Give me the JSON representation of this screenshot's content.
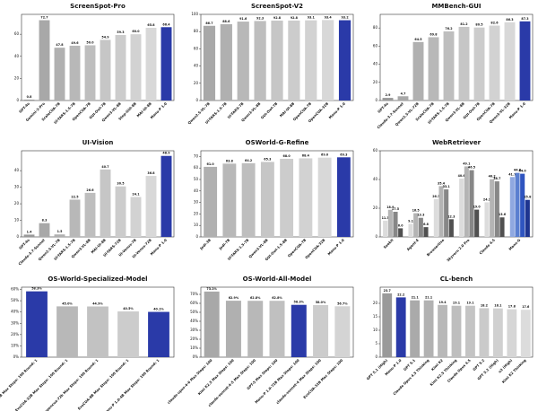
{
  "chart_data": [
    {
      "type": "bar",
      "title": "ScreenSpot-Pro",
      "categories": [
        "GPT-4o",
        "Gemini-3-Pro",
        "ScaleCUA-7B",
        "UI-TARS-1.5-7B",
        "OpenCUA-7B",
        "GUI-Owl-7B",
        "Qwen3-VL-8B",
        "Step-GUI-8B",
        "MAI-UI-8B",
        "Mano-P 1.0"
      ],
      "values": [
        0.8,
        72.7,
        47.8,
        49.6,
        50.0,
        54.9,
        59.3,
        60.0,
        65.8,
        66.4
      ],
      "value_labels": [
        "0.8",
        "72.7",
        "47.8",
        "49.6",
        "50.0",
        "54.9",
        "59.3",
        "60.0",
        "65.8",
        "66.4"
      ],
      "colors": [
        "#9a9a9a",
        "#a8a8a8",
        "#b0b0b0",
        "#b8b8b8",
        "#bebebe",
        "#c6c6c6",
        "#cccccc",
        "#d2d2d2",
        "#d8d8d8",
        "#2a3aa8"
      ],
      "ylim": [
        0,
        78
      ],
      "yticks": [
        0,
        20,
        40,
        60
      ]
    },
    {
      "type": "bar",
      "title": "ScreenSpot-V2",
      "categories": [
        "Qwen2.5-VL-7B",
        "UI-TARS-1.5-7B",
        "UI-TARS-7B",
        "Qwen3-VL-8B",
        "GUI-Owl-7B",
        "MAI-UI-8B",
        "OpenCUA-7B",
        "OpenCUA-32B",
        "Mano-P 1.0"
      ],
      "values": [
        86.7,
        88.6,
        91.6,
        92.3,
        92.8,
        92.8,
        93.1,
        93.4,
        93.2
      ],
      "value_labels": [
        "86.7",
        "88.6",
        "91.6",
        "92.3",
        "92.8",
        "92.8",
        "93.1",
        "93.4",
        "93.2"
      ],
      "colors": [
        "#a8a8a8",
        "#b0b0b0",
        "#b8b8b8",
        "#bebebe",
        "#c6c6c6",
        "#cccccc",
        "#d2d2d2",
        "#d8d8d8",
        "#2a3aa8"
      ],
      "ylim": [
        0,
        100
      ],
      "yticks": [
        0,
        20,
        40,
        60,
        80,
        100
      ]
    },
    {
      "type": "bar",
      "title": "MMBench-GUI",
      "categories": [
        "GPT-4o",
        "Claude-3.7-Sonnet",
        "Qwen2.5-VL-72B",
        "ScaleCUA-7B",
        "UI-TARS-1.5-7B",
        "Qwen3-VL-8B",
        "GUI-Owl-7B",
        "OpenCUA-7B",
        "Qwen3-VL-32B",
        "Mano-P 1.0"
      ],
      "values": [
        2.9,
        4.7,
        64.5,
        69.8,
        76.2,
        81.2,
        80.5,
        82.6,
        86.3,
        87.3
      ],
      "value_labels": [
        "2.9",
        "4.7",
        "64.5",
        "69.8",
        "76.2",
        "81.2",
        "80.5",
        "82.6",
        "86.3",
        "87.3"
      ],
      "colors": [
        "#9a9a9a",
        "#a8a8a8",
        "#b0b0b0",
        "#b8b8b8",
        "#bebebe",
        "#c6c6c6",
        "#cccccc",
        "#d2d2d2",
        "#d8d8d8",
        "#2a3aa8"
      ],
      "ylim": [
        0,
        95
      ],
      "yticks": [
        0,
        20,
        40,
        60,
        80
      ]
    },
    {
      "type": "bar",
      "title": "UI-Vision",
      "categories": [
        "GPT-4o",
        "Claude-3.7-Sonnet",
        "Qwen2.5-VL-7B",
        "UI-TARS-1.5-7B",
        "Qwen3-VL-8B",
        "MAI-UI-8B",
        "UI-TARS-72B",
        "UI-Venus-7B",
        "UI-Venus-72B",
        "Mano-P 1.0"
      ],
      "values": [
        1.4,
        8.3,
        1.5,
        22.5,
        26.6,
        40.7,
        30.5,
        24.1,
        36.8,
        48.9
      ],
      "value_labels": [
        "1.4",
        "8.3",
        "1.5",
        "22.5",
        "26.6",
        "40.7",
        "30.5",
        "24.1",
        "36.8",
        "48.9"
      ],
      "colors": [
        "#9a9a9a",
        "#a8a8a8",
        "#b0b0b0",
        "#b8b8b8",
        "#bebebe",
        "#c6c6c6",
        "#cccccc",
        "#d2d2d2",
        "#d8d8d8",
        "#2a3aa8"
      ],
      "ylim": [
        0,
        52
      ],
      "yticks": [
        0,
        10,
        20,
        30,
        40
      ]
    },
    {
      "type": "bar",
      "title": "OSWorld-G-Refine",
      "categories": [
        "Jedi-3B",
        "Jedi-7B",
        "UI-TARS-1.5-7B",
        "Qwen3-VL-8B",
        "GUI-Owl-1.5-8B",
        "OpenCUA-7B",
        "OpenCUA-32B",
        "Mano-P 1.0"
      ],
      "values": [
        61.0,
        63.8,
        64.2,
        65.3,
        68.0,
        68.4,
        69.0,
        69.3
      ],
      "value_labels": [
        "61.0",
        "63.8",
        "64.2",
        "65.3",
        "68.0",
        "68.4",
        "69.0",
        "69.3"
      ],
      "colors": [
        "#b0b0b0",
        "#b8b8b8",
        "#bebebe",
        "#c6c6c6",
        "#cccccc",
        "#d2d2d2",
        "#d8d8d8",
        "#2a3aa8"
      ],
      "ylim": [
        0,
        75
      ],
      "yticks": [
        0,
        10,
        20,
        30,
        40,
        50,
        60,
        70
      ]
    },
    {
      "type": "grouped",
      "title": "WebRetriever",
      "categories": [
        "Seekit",
        "Agent-E",
        "BrowserUse",
        "Skyvern 2.0 Pro",
        "Claude 4.5",
        "Mano-G"
      ],
      "series": [
        {
          "values": [
            11.3,
            9.1,
            26.3,
            40.6,
            24.1,
            41.7
          ],
          "value_labels": [
            "11.3",
            "9.1",
            "26.3",
            "40.6",
            "24.1",
            "41.7"
          ],
          "colors": [
            "#dcdcdc",
            "#dcdcdc",
            "#dcdcdc",
            "#dcdcdc",
            "#dcdcdc",
            "#8fa8e0"
          ]
        },
        {
          "values": [
            18.9,
            16.5,
            35.4,
            49.1,
            40.2,
            44.6
          ],
          "value_labels": [
            "18.9",
            "16.5",
            "35.4",
            "49.1",
            "40.2",
            "44.6"
          ],
          "colors": [
            "#b4b4b4",
            "#b4b4b4",
            "#b4b4b4",
            "#b4b4b4",
            "#b4b4b4",
            "#5a7fd0"
          ]
        },
        {
          "values": [
            17.5,
            13.3,
            33.1,
            46.5,
            38.7,
            44.0
          ],
          "value_labels": [
            "17.5",
            "13.3",
            "33.1",
            "46.5",
            "38.7",
            "44.0"
          ],
          "colors": [
            "#878787",
            "#878787",
            "#878787",
            "#878787",
            "#878787",
            "#2f55c0"
          ]
        },
        {
          "values": [
            6.0,
            6.8,
            12.3,
            19.0,
            13.6,
            25.8
          ],
          "value_labels": [
            "6.0",
            "6.8",
            "12.3",
            "19.0",
            "13.6",
            "25.8"
          ],
          "colors": [
            "#505050",
            "#505050",
            "#505050",
            "#505050",
            "#505050",
            "#1f3590"
          ]
        }
      ],
      "ylim": [
        0,
        60
      ],
      "yticks": [
        0,
        20,
        40,
        60
      ]
    },
    {
      "type": "bar",
      "title": "OS-World-Specialized-Model",
      "categories": [
        "Mano-P 1.0-72B Max Steps: 100 Round: 1",
        "EvoCUA-32B Max Steps: 100 Round: 1",
        "opencua-72b Max Steps: 100 Round: 1",
        "EvoCUA-8B Max Steps: 100 Round: 1",
        "Mano-P 1.0-4B Max Steps: 100 Round: 1"
      ],
      "values": [
        58.3,
        45.0,
        44.9,
        40.5,
        40.1
      ],
      "value_labels": [
        "58.3%",
        "45.0%",
        "44.9%",
        "40.5%",
        "40.1%"
      ],
      "colors": [
        "#2a3aa8",
        "#b8b8b8",
        "#c2c2c2",
        "#cccccc",
        "#2a3aa8"
      ],
      "ylim": [
        0,
        62
      ],
      "yticks": [
        {
          "value": 0,
          "label": "0%"
        },
        {
          "value": 10,
          "label": "10%"
        },
        {
          "value": 20,
          "label": "20%"
        },
        {
          "value": 30,
          "label": "30%"
        },
        {
          "value": 40,
          "label": "40%"
        },
        {
          "value": 50,
          "label": "50%"
        },
        {
          "value": 60,
          "label": "60%"
        }
      ]
    },
    {
      "type": "bar",
      "title": "OS-World-All-Model",
      "categories": [
        "claude-opus-4-6 Max Steps: 100",
        "Kimi K2.5 Max Steps: 100",
        "claude-sonnet-4-5 Max Steps: 100",
        "GPT-5 Max Steps: 100",
        "Mano-P 1.0-72B Max Steps: 100",
        "claude-sonnet-4 Max Steps: 100",
        "EvoCUA-32B Max Steps: 100"
      ],
      "values": [
        73.1,
        62.9,
        62.8,
        62.8,
        58.3,
        58.0,
        56.7
      ],
      "value_labels": [
        "73.1%",
        "62.9%",
        "62.8%",
        "62.8%",
        "58.3%",
        "58.0%",
        "56.7%"
      ],
      "colors": [
        "#a8a8a8",
        "#b0b0b0",
        "#b8b8b8",
        "#c0c0c0",
        "#2a3aa8",
        "#cccccc",
        "#d4d4d4"
      ],
      "ylim": [
        0,
        78
      ],
      "yticks": [
        {
          "value": 0,
          "label": "0%"
        },
        {
          "value": 10,
          "label": "10%"
        },
        {
          "value": 20,
          "label": "20%"
        },
        {
          "value": 30,
          "label": "30%"
        },
        {
          "value": 40,
          "label": "40%"
        },
        {
          "value": 50,
          "label": "50%"
        },
        {
          "value": 60,
          "label": "60%"
        },
        {
          "value": 70,
          "label": "70%"
        }
      ]
    },
    {
      "type": "bar",
      "title": "CL-bench",
      "categories": [
        "GPT 5.1 (High)",
        "Mano-P 1.0",
        "GPT 5.1",
        "Claude Opus 4.5 Thinking",
        "Kimi K2",
        "Kimi K2.5 Thinking",
        "Claude Opus 4.5",
        "GPT 5.2",
        "GPT 5.2 (High)",
        "o3 (High)",
        "Kimi K2 Thinking"
      ],
      "values": [
        23.7,
        22.2,
        21.1,
        21.1,
        19.4,
        19.1,
        19.1,
        18.2,
        18.1,
        17.8,
        17.6
      ],
      "value_labels": [
        "23.7",
        "22.2",
        "21.1",
        "21.1",
        "19.4",
        "19.1",
        "19.1",
        "18.2",
        "18.1",
        "17.8",
        "17.6"
      ],
      "colors": [
        "#9a9a9a",
        "#2a3aa8",
        "#aaaaaa",
        "#b2b2b2",
        "#b8b8b8",
        "#bebebe",
        "#c4c4c4",
        "#cacaca",
        "#d0d0d0",
        "#d6d6d6",
        "#dcdcdc"
      ],
      "ylim": [
        0,
        26
      ],
      "yticks": [
        0,
        5,
        10,
        15,
        20
      ]
    }
  ]
}
